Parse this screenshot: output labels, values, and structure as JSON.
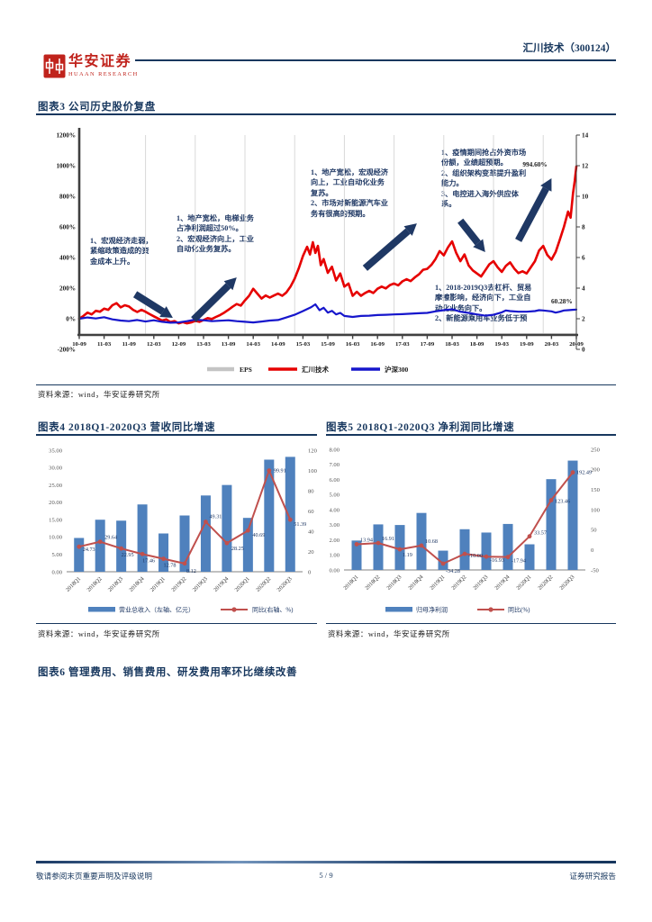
{
  "header": {
    "brand_cn": "华安证券",
    "brand_en": "HUAAN RESEARCH",
    "doc_title": "汇川技术（300124）"
  },
  "figures": {
    "fig3": {
      "title": "图表3 公司历史股价复盘",
      "source": "资料来源：wind，华安证券研究所",
      "annotations": [
        {
          "items": [
            "1、宏观经济走弱，紧缩政策造成的资金成本上升。"
          ]
        },
        {
          "items": [
            "1、地产宽松，电梯业务占净利润超过50%。",
            "2、宏观经济向上，工业自动化业务复苏。"
          ]
        },
        {
          "items": [
            "1、地产宽松，宏观经济向上，工业自动化业务复苏。",
            "2、市场对新能源汽车业务有很高的预期。"
          ]
        },
        {
          "items": [
            "1、疫情期间抢占外资市场份额，业绩超预期。",
            "2、组织架构变革提升盈利能力。",
            "3、电控进入海外供应体系。"
          ]
        },
        {
          "items": [
            "1、2018-2019Q3去杠杆、贸易摩擦影响，经济向下，工业自动化业务向下。",
            "2、新能源乘用车业务低于预期。"
          ]
        }
      ]
    },
    "fig4": {
      "title": "图表4 2018Q1-2020Q3 营收同比增速",
      "source": "资料来源：wind，华安证券研究所"
    },
    "fig5": {
      "title": "图表5 2018Q1-2020Q3 净利润同比增速",
      "source": "资料来源：wind，华安证券研究所"
    },
    "fig6": {
      "title": "图表6 管理费用、销售费用、研发费用率环比继续改善"
    }
  },
  "footer": {
    "left": "敬请参阅末页重要声明及评级说明",
    "page": "5 / 9",
    "right": "证券研究报告"
  },
  "chart_data": [
    {
      "id": "price-replay",
      "type": "line",
      "title": "公司历史股价复盘",
      "x_tick_labels": [
        "10-09",
        "11-03",
        "11-09",
        "12-03",
        "12-09",
        "13-03",
        "13-09",
        "14-03",
        "14-09",
        "15-03",
        "15-09",
        "16-03",
        "16-09",
        "17-03",
        "17-09",
        "18-03",
        "18-09",
        "19-03",
        "19-09",
        "20-03",
        "20-09"
      ],
      "left_axis": {
        "min": -200,
        "max": 1200,
        "step": 200,
        "suffix": "%"
      },
      "right_axis": {
        "min": 0,
        "max": 14,
        "step": 2
      },
      "series": [
        {
          "name": "EPS",
          "axis": "right",
          "color": "#d4d4d4",
          "width": 2,
          "points": [
            [
              0,
              0.95
            ],
            [
              12,
              0.97
            ],
            [
              24,
              0.95
            ],
            [
              36,
              0.97
            ],
            [
              48,
              1.0
            ],
            [
              60,
              1.0
            ],
            [
              72,
              0.98
            ],
            [
              84,
              1.0
            ],
            [
              96,
              0.98
            ],
            [
              108,
              1.0
            ],
            [
              114,
              1.0
            ],
            [
              120,
              1.0
            ]
          ]
        },
        {
          "name": "汇川技术",
          "axis": "left",
          "color": "#e60000",
          "width": 2.6,
          "points": [
            [
              0,
              0
            ],
            [
              1,
              18
            ],
            [
              2,
              40
            ],
            [
              3,
              28
            ],
            [
              4,
              52
            ],
            [
              5,
              46
            ],
            [
              6,
              66
            ],
            [
              7,
              58
            ],
            [
              8,
              88
            ],
            [
              9,
              102
            ],
            [
              10,
              74
            ],
            [
              11,
              88
            ],
            [
              12,
              80
            ],
            [
              13,
              58
            ],
            [
              14,
              44
            ],
            [
              15,
              58
            ],
            [
              16,
              46
            ],
            [
              17,
              30
            ],
            [
              18,
              16
            ],
            [
              19,
              2
            ],
            [
              20,
              -12
            ],
            [
              21,
              -4
            ],
            [
              22,
              -22
            ],
            [
              23,
              -16
            ],
            [
              24,
              -30
            ],
            [
              25,
              -22
            ],
            [
              26,
              -30
            ],
            [
              27,
              -24
            ],
            [
              28,
              -14
            ],
            [
              29,
              -20
            ],
            [
              30,
              -8
            ],
            [
              31,
              4
            ],
            [
              32,
              -2
            ],
            [
              33,
              12
            ],
            [
              34,
              24
            ],
            [
              35,
              40
            ],
            [
              36,
              58
            ],
            [
              37,
              78
            ],
            [
              38,
              96
            ],
            [
              39,
              86
            ],
            [
              40,
              120
            ],
            [
              41,
              150
            ],
            [
              42,
              196
            ],
            [
              43,
              164
            ],
            [
              44,
              132
            ],
            [
              45,
              152
            ],
            [
              46,
              138
            ],
            [
              47,
              152
            ],
            [
              48,
              164
            ],
            [
              49,
              150
            ],
            [
              50,
              172
            ],
            [
              51,
              210
            ],
            [
              52,
              262
            ],
            [
              53,
              330
            ],
            [
              54,
              410
            ],
            [
              55,
              470
            ],
            [
              55.7,
              420
            ],
            [
              56.4,
              500
            ],
            [
              57,
              430
            ],
            [
              57.6,
              476
            ],
            [
              58.3,
              350
            ],
            [
              59,
              390
            ],
            [
              60,
              300
            ],
            [
              61,
              340
            ],
            [
              62,
              250
            ],
            [
              63,
              296
            ],
            [
              64,
              210
            ],
            [
              65,
              230
            ],
            [
              66,
              150
            ],
            [
              67,
              176
            ],
            [
              68,
              150
            ],
            [
              69,
              168
            ],
            [
              70,
              182
            ],
            [
              71,
              168
            ],
            [
              72,
              196
            ],
            [
              73,
              210
            ],
            [
              74,
              198
            ],
            [
              75,
              220
            ],
            [
              76,
              230
            ],
            [
              77,
              218
            ],
            [
              78,
              244
            ],
            [
              79,
              258
            ],
            [
              80,
              246
            ],
            [
              81,
              270
            ],
            [
              82,
              290
            ],
            [
              83,
              320
            ],
            [
              84,
              326
            ],
            [
              85,
              352
            ],
            [
              86,
              390
            ],
            [
              87,
              442
            ],
            [
              88,
              414
            ],
            [
              89,
              466
            ],
            [
              90,
              505
            ],
            [
              91,
              430
            ],
            [
              92,
              376
            ],
            [
              93,
              420
            ],
            [
              94,
              348
            ],
            [
              95,
              316
            ],
            [
              96,
              296
            ],
            [
              97,
              276
            ],
            [
              98,
              316
            ],
            [
              99,
              356
            ],
            [
              100,
              376
            ],
            [
              101,
              336
            ],
            [
              102,
              306
            ],
            [
              103,
              346
            ],
            [
              104,
              368
            ],
            [
              105,
              328
            ],
            [
              106,
              298
            ],
            [
              107,
              310
            ],
            [
              108,
              296
            ],
            [
              109,
              336
            ],
            [
              110,
              376
            ],
            [
              111,
              446
            ],
            [
              112,
              476
            ],
            [
              113,
              416
            ],
            [
              114,
              386
            ],
            [
              115,
              436
            ],
            [
              116,
              516
            ],
            [
              117,
              600
            ],
            [
              118,
              700
            ],
            [
              118.6,
              660
            ],
            [
              119.2,
              820
            ],
            [
              119.6,
              900
            ],
            [
              120,
              994.6
            ]
          ]
        },
        {
          "name": "沪深300",
          "axis": "left",
          "color": "#1616cc",
          "width": 2.2,
          "points": [
            [
              0,
              0
            ],
            [
              2,
              8
            ],
            [
              4,
              2
            ],
            [
              6,
              10
            ],
            [
              8,
              -4
            ],
            [
              10,
              -12
            ],
            [
              12,
              -16
            ],
            [
              14,
              -8
            ],
            [
              16,
              -18
            ],
            [
              18,
              -10
            ],
            [
              20,
              -20
            ],
            [
              22,
              -26
            ],
            [
              24,
              -24
            ],
            [
              26,
              -16
            ],
            [
              28,
              -6
            ],
            [
              30,
              -10
            ],
            [
              32,
              -16
            ],
            [
              34,
              -13
            ],
            [
              36,
              -10
            ],
            [
              38,
              -16
            ],
            [
              40,
              -20
            ],
            [
              42,
              -24
            ],
            [
              44,
              -18
            ],
            [
              46,
              -12
            ],
            [
              48,
              -8
            ],
            [
              50,
              8
            ],
            [
              52,
              26
            ],
            [
              54,
              50
            ],
            [
              56,
              76
            ],
            [
              57,
              94
            ],
            [
              58,
              56
            ],
            [
              59,
              72
            ],
            [
              60,
              40
            ],
            [
              61,
              52
            ],
            [
              62,
              28
            ],
            [
              63,
              38
            ],
            [
              64,
              18
            ],
            [
              66,
              12
            ],
            [
              68,
              18
            ],
            [
              70,
              20
            ],
            [
              72,
              24
            ],
            [
              74,
              26
            ],
            [
              76,
              28
            ],
            [
              78,
              30
            ],
            [
              80,
              33
            ],
            [
              82,
              36
            ],
            [
              84,
              38
            ],
            [
              86,
              48
            ],
            [
              88,
              56
            ],
            [
              90,
              62
            ],
            [
              91,
              54
            ],
            [
              92,
              46
            ],
            [
              94,
              38
            ],
            [
              96,
              28
            ],
            [
              98,
              20
            ],
            [
              100,
              26
            ],
            [
              102,
              42
            ],
            [
              103,
              54
            ],
            [
              104,
              50
            ],
            [
              106,
              46
            ],
            [
              108,
              46
            ],
            [
              110,
              50
            ],
            [
              111,
              56
            ],
            [
              112,
              54
            ],
            [
              114,
              48
            ],
            [
              115,
              40
            ],
            [
              116,
              46
            ],
            [
              117,
              54
            ],
            [
              118,
              56
            ],
            [
              119,
              58
            ],
            [
              120,
              60.28
            ]
          ]
        }
      ],
      "point_labels": [
        {
          "text": "994.60%",
          "month": 110,
          "pct": 1005
        },
        {
          "text": "60.28%",
          "month": 116.5,
          "pct": 112
        }
      ],
      "arrows": [
        [
          13.5,
          160,
          22.6,
          6
        ],
        [
          27.6,
          -6,
          38,
          270
        ],
        [
          69,
          330,
          81.5,
          623
        ],
        [
          92,
          640,
          98,
          435
        ],
        [
          106,
          512,
          114,
          918
        ]
      ],
      "legend": [
        "EPS",
        "汇川技术",
        "沪深300"
      ]
    },
    {
      "id": "revenue-yoy",
      "type": "bar+line",
      "categories": [
        "2018Q1",
        "2018Q2",
        "2018Q3",
        "2018Q4",
        "2019Q1",
        "2019Q2",
        "2019Q3",
        "2019Q4",
        "2020Q1",
        "2020Q2",
        "2020Q3"
      ],
      "bars": {
        "name": "营业总收入（左轴、亿元）",
        "color": "#4f81bd",
        "values": [
          9.73,
          14.98,
          14.71,
          19.38,
          11.02,
          16.2,
          21.96,
          24.98,
          15.51,
          32.28,
          33.08
        ]
      },
      "line": {
        "name": "同比(右轴、%)",
        "color": "#c0504d",
        "values": [
          24.73,
          29.64,
          22.95,
          17.46,
          12.78,
          8.12,
          49.31,
          28.25,
          40.69,
          99.91,
          51.39
        ]
      },
      "left_axis": {
        "min": 0,
        "max": 35,
        "step": 5,
        "decimals": 2
      },
      "right_axis": {
        "min": 0,
        "max": 120,
        "step": 20,
        "decimals": 0
      }
    },
    {
      "id": "profit-yoy",
      "type": "bar+line",
      "categories": [
        "2018Q1",
        "2018Q2",
        "2018Q3",
        "2018Q4",
        "2019Q1",
        "2019Q2",
        "2019Q3",
        "2019Q4",
        "2020Q1",
        "2020Q2",
        "2020Q3"
      ],
      "bars": {
        "name": "归母净利润",
        "color": "#4f81bd",
        "values": [
          1.95,
          3.02,
          2.98,
          3.78,
          1.28,
          2.7,
          2.48,
          3.05,
          1.7,
          6.02,
          7.25
        ]
      },
      "line": {
        "name": "同比(%)",
        "color": "#c0504d",
        "values": [
          13.94,
          16.91,
          1.19,
          10.68,
          -34.28,
          -10.0,
          -16.93,
          -17.94,
          33.57,
          123.46,
          192.49
        ]
      },
      "left_axis": {
        "min": 0,
        "max": 8,
        "step": 1,
        "decimals": 2
      },
      "right_axis": {
        "min": -50,
        "max": 250,
        "step": 50,
        "decimals": 0
      }
    }
  ]
}
